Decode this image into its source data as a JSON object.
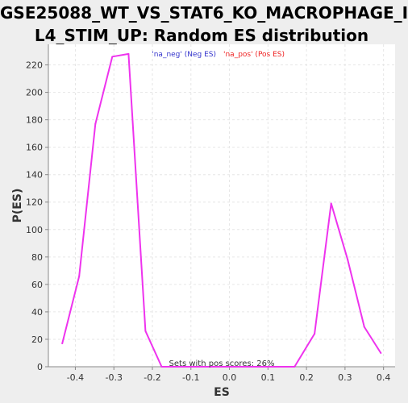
{
  "chart_data": {
    "type": "line",
    "title_line1": "GSE25088_WT_VS_STAT6_KO_MACROPHAGE_I",
    "title_line2": "L4_STIM_UP: Random ES distribution",
    "xlabel": "ES",
    "ylabel": "P(ES)",
    "xlim": [
      -0.47,
      0.43
    ],
    "ylim": [
      0,
      235
    ],
    "x_ticks": [
      -0.4,
      -0.3,
      -0.2,
      -0.1,
      0.0,
      0.1,
      0.2,
      0.3,
      0.4
    ],
    "x_tick_labels": [
      "-0.4",
      "-0.3",
      "-0.2",
      "-0.1",
      "0.0",
      "0.1",
      "0.2",
      "0.3",
      "0.4"
    ],
    "y_ticks": [
      0,
      20,
      40,
      60,
      80,
      100,
      120,
      140,
      160,
      180,
      200,
      220
    ],
    "y_tick_labels": [
      "0",
      "20",
      "40",
      "60",
      "80",
      "100",
      "120",
      "140",
      "160",
      "180",
      "200",
      "220"
    ],
    "grid": true,
    "legend": [
      {
        "label": "'na_neg' (Neg ES)",
        "color": "#3333cc"
      },
      {
        "label": "'na_pos' (Pos ES)",
        "color": "#ee2222"
      }
    ],
    "legend_position": "top-center",
    "annotation": "Sets with pos scores: 26%",
    "series": [
      {
        "color": "#ee33ee",
        "x": [
          -0.434,
          -0.39,
          -0.348,
          -0.304,
          -0.262,
          -0.218,
          -0.176,
          -0.132,
          -0.09,
          -0.046,
          -0.003,
          0.04,
          0.083,
          0.126,
          0.169,
          0.221,
          0.264,
          0.307,
          0.35,
          0.393
        ],
        "y": [
          17,
          66,
          177,
          226,
          228,
          26,
          0,
          0,
          0,
          0,
          0,
          0,
          0,
          0,
          0,
          24,
          119,
          78,
          29,
          10
        ]
      }
    ]
  }
}
